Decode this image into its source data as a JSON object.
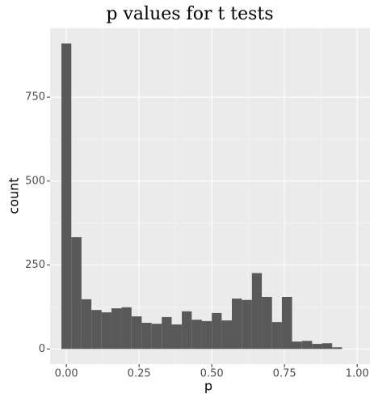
{
  "chart_data": {
    "type": "histogram",
    "title": "p values for t tests",
    "xlabel": "p",
    "ylabel": "count",
    "bins": [
      -0.017,
      0.017,
      0.052,
      0.086,
      0.121,
      0.155,
      0.19,
      0.224,
      0.259,
      0.293,
      0.328,
      0.362,
      0.397,
      0.431,
      0.466,
      0.5,
      0.534,
      0.569,
      0.603,
      0.638,
      0.672,
      0.707,
      0.741,
      0.776,
      0.81,
      0.845,
      0.879,
      0.914,
      0.948
    ],
    "values": [
      910,
      333,
      148,
      116,
      109,
      121,
      124,
      97,
      78,
      75,
      95,
      73,
      112,
      87,
      83,
      107,
      85,
      150,
      146,
      226,
      155,
      80,
      155,
      22,
      24,
      15,
      17,
      5
    ],
    "color": "#595959",
    "xlim": [
      -0.056,
      1.044
    ],
    "xticks": [
      {
        "value": 0,
        "label": "0.00"
      },
      {
        "value": 0.25,
        "label": "0.25"
      },
      {
        "value": 0.5,
        "label": "0.50"
      },
      {
        "value": 0.75,
        "label": "0.75"
      },
      {
        "value": 1,
        "label": "1.00"
      }
    ],
    "ylim": [
      -45,
      955
    ],
    "yticks": [
      0,
      250,
      500,
      750
    ],
    "grid": true
  }
}
